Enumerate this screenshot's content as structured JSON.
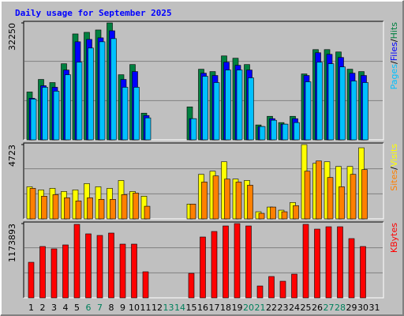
{
  "chart_data": [
    {
      "type": "bar",
      "title": "Daily usage for September 2025",
      "legend_separator": "/",
      "ylim": [
        0,
        32250
      ],
      "yticks": [
        32250
      ],
      "grid": true,
      "series": [
        {
          "name": "Hits",
          "color": "#008040",
          "values": [
            13200,
            16660,
            15800,
            20990,
            29210,
            29650,
            30300,
            32250,
            17960,
            20770,
            7360,
            null,
            null,
            null,
            9090,
            19480,
            18830,
            23150,
            22510,
            20770,
            4110,
            6490,
            4760,
            6490,
            18180,
            24890,
            24890,
            24240,
            19480,
            18830,
            null
          ]
        },
        {
          "name": "Files",
          "color": "#0000ff",
          "values": [
            11470,
            14930,
            14500,
            19260,
            27050,
            27700,
            28130,
            30080,
            16660,
            18830,
            6710,
            null,
            null,
            null,
            5840,
            18390,
            17750,
            21420,
            20560,
            19260,
            3680,
            5840,
            4330,
            5840,
            17750,
            24020,
            23590,
            22720,
            18390,
            17750,
            null
          ]
        },
        {
          "name": "Pages",
          "color": "#00c0ff",
          "values": [
            11250,
            14500,
            13420,
            17960,
            21420,
            25320,
            27050,
            27920,
            14500,
            14500,
            6060,
            null,
            null,
            null,
            5840,
            17530,
            15800,
            19260,
            19260,
            17100,
            3680,
            5410,
            4330,
            4760,
            16010,
            21420,
            20990,
            20120,
            16230,
            15800,
            null
          ]
        }
      ]
    },
    {
      "type": "bar",
      "legend_separator": "/",
      "ylim": [
        0,
        4723
      ],
      "yticks": [
        4723
      ],
      "grid": true,
      "series": [
        {
          "name": "Visits",
          "color": "#ffff00",
          "values": [
            2040,
            1840,
            1940,
            1740,
            1840,
            2240,
            2040,
            1940,
            2440,
            1740,
            1440,
            null,
            null,
            null,
            940,
            2830,
            3030,
            3630,
            2530,
            2440,
            450,
            750,
            550,
            1040,
            4723,
            3530,
            3630,
            3330,
            3330,
            4520,
            null
          ]
        },
        {
          "name": "Sites",
          "color": "#ff8000",
          "values": [
            1940,
            1440,
            1540,
            1340,
            1140,
            1340,
            1240,
            1240,
            1540,
            1640,
            800,
            null,
            null,
            null,
            940,
            2340,
            2730,
            2530,
            2340,
            2140,
            350,
            750,
            450,
            840,
            3030,
            3680,
            2630,
            2040,
            2830,
            3130,
            null
          ]
        }
      ]
    },
    {
      "type": "bar",
      "ylim": [
        0,
        1173893
      ],
      "yticks": [
        1173893
      ],
      "grid": true,
      "categories": [
        "1",
        "2",
        "3",
        "4",
        "5",
        "6",
        "7",
        "8",
        "9",
        "10",
        "11",
        "12",
        "13",
        "14",
        "15",
        "16",
        "17",
        "18",
        "19",
        "20",
        "21",
        "22",
        "23",
        "24",
        "25",
        "26",
        "27",
        "28",
        "29",
        "30",
        "31"
      ],
      "category_colors": [
        "#000000",
        "#000000",
        "#000000",
        "#000000",
        "#000000",
        "#00805c",
        "#00805c",
        "#000000",
        "#000000",
        "#000000",
        "#000000",
        "#000000",
        "#00805c",
        "#00805c",
        "#000000",
        "#000000",
        "#000000",
        "#000000",
        "#000000",
        "#00805c",
        "#00805c",
        "#000000",
        "#000000",
        "#000000",
        "#000000",
        "#000000",
        "#00805c",
        "#00805c",
        "#000000",
        "#000000",
        "#000000"
      ],
      "series": [
        {
          "name": "KBytes",
          "color": "#ff0000",
          "values": [
            561960,
            811720,
            774260,
            836700,
            1161380,
            1011530,
            986550,
            1024020,
            849180,
            849180,
            412100,
            null,
            null,
            null,
            387130,
            961580,
            1049000,
            1136410,
            1173893,
            1136410,
            187320,
            337180,
            262250,
            374640,
            1161380,
            1086460,
            1123920,
            1123920,
            936600,
            811720,
            null
          ]
        }
      ]
    }
  ]
}
